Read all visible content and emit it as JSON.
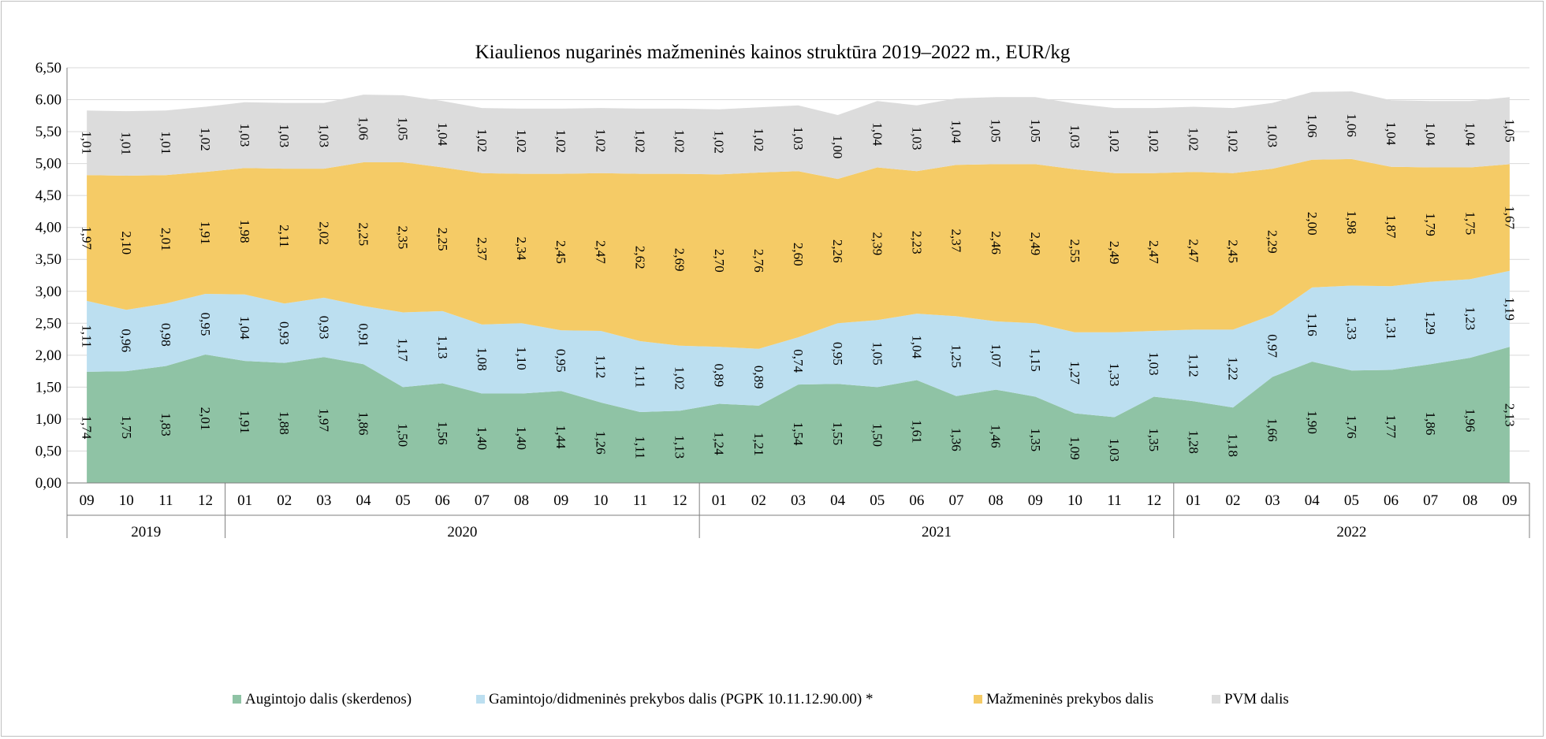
{
  "chart_data": {
    "type": "area",
    "stacked": true,
    "title": "Kiaulienos nugarinės mažmeninės kainos struktūra 2019–2022 m., EUR/kg",
    "xlabel": "",
    "ylabel": "",
    "ylim": [
      0,
      6.5
    ],
    "yticks": [
      "0,00",
      "0,50",
      "1,00",
      "1,50",
      "2,00",
      "2,50",
      "3,00",
      "3,50",
      "4,00",
      "4,50",
      "5,00",
      "5,50",
      "6.00",
      "6,50"
    ],
    "grid": true,
    "legend_position": "bottom",
    "categories": [
      "09",
      "10",
      "11",
      "12",
      "01",
      "02",
      "03",
      "04",
      "05",
      "06",
      "07",
      "08",
      "09",
      "10",
      "11",
      "12",
      "01",
      "02",
      "03",
      "04",
      "05",
      "06",
      "07",
      "08",
      "09",
      "10",
      "11",
      "12",
      "01",
      "02",
      "03",
      "04",
      "05",
      "06",
      "07",
      "08",
      "09"
    ],
    "years": [
      {
        "label": "2019",
        "start": 0,
        "end": 3
      },
      {
        "label": "2020",
        "start": 4,
        "end": 15
      },
      {
        "label": "2021",
        "start": 16,
        "end": 27
      },
      {
        "label": "2022",
        "start": 28,
        "end": 36
      }
    ],
    "series": [
      {
        "name": "Augintojo dalis (skerdenos)",
        "color": "#8fc3a5",
        "values": [
          1.74,
          1.75,
          1.83,
          2.01,
          1.91,
          1.88,
          1.97,
          1.86,
          1.5,
          1.56,
          1.4,
          1.4,
          1.44,
          1.26,
          1.11,
          1.13,
          1.24,
          1.21,
          1.54,
          1.55,
          1.5,
          1.61,
          1.36,
          1.46,
          1.35,
          1.09,
          1.03,
          1.35,
          1.28,
          1.18,
          1.66,
          1.9,
          1.76,
          1.77,
          1.86,
          1.96,
          2.13
        ],
        "labels": [
          "1,74",
          "1,75",
          "1,83",
          "2,01",
          "1,91",
          "1,88",
          "1,97",
          "1,86",
          "1,50",
          "1,56",
          "1,40",
          "1,40",
          "1,44",
          "1,26",
          "1,11",
          "1,13",
          "1,24",
          "1,21",
          "1,54",
          "1,55",
          "1,50",
          "1,61",
          "1,36",
          "1,46",
          "1,35",
          "1,09",
          "1,03",
          "1,35",
          "1,28",
          "1,18",
          "1,66",
          "1,90",
          "1,76",
          "1,77",
          "1,86",
          "1,96",
          "2,13"
        ]
      },
      {
        "name": "Gamintojo/didmeninės prekybos dalis (PGPK 10.11.12.90.00) *",
        "color": "#bcdff0",
        "values": [
          1.11,
          0.96,
          0.98,
          0.95,
          1.04,
          0.93,
          0.93,
          0.91,
          1.17,
          1.13,
          1.08,
          1.1,
          0.95,
          1.12,
          1.11,
          1.02,
          0.89,
          0.89,
          0.74,
          0.95,
          1.05,
          1.04,
          1.25,
          1.07,
          1.15,
          1.27,
          1.33,
          1.03,
          1.12,
          1.22,
          0.97,
          1.16,
          1.33,
          1.31,
          1.29,
          1.23,
          1.19
        ],
        "labels": [
          "1,11",
          "0,96",
          "0,98",
          "0,95",
          "1,04",
          "0,93",
          "0,93",
          "0,91",
          "1,17",
          "1,13",
          "1,08",
          "1,10",
          "0,95",
          "1,12",
          "1,11",
          "1,02",
          "0,89",
          "0,89",
          "0,74",
          "0,95",
          "1,05",
          "1,04",
          "1,25",
          "1,07",
          "1,15",
          "1,27",
          "1,33",
          "1,03",
          "1,12",
          "1,22",
          "0,97",
          "1,16",
          "1,33",
          "1,31",
          "1,29",
          "1,23",
          "1,19"
        ]
      },
      {
        "name": "Mažmeninės prekybos dalis",
        "color": "#f5cb66",
        "values": [
          1.97,
          2.1,
          2.01,
          1.91,
          1.98,
          2.11,
          2.02,
          2.25,
          2.35,
          2.25,
          2.37,
          2.34,
          2.45,
          2.47,
          2.62,
          2.69,
          2.7,
          2.76,
          2.6,
          2.26,
          2.39,
          2.23,
          2.37,
          2.46,
          2.49,
          2.55,
          2.49,
          2.47,
          2.47,
          2.45,
          2.29,
          2.0,
          1.98,
          1.87,
          1.79,
          1.75,
          1.67
        ],
        "labels": [
          "1,97",
          "2,10",
          "2,01",
          "1,91",
          "1,98",
          "2,11",
          "2,02",
          "2,25",
          "2,35",
          "2,25",
          "2,37",
          "2,34",
          "2,45",
          "2,47",
          "2,62",
          "2,69",
          "2,70",
          "2,76",
          "2,60",
          "2,26",
          "2,39",
          "2,23",
          "2,37",
          "2,46",
          "2,49",
          "2,55",
          "2,49",
          "2,47",
          "2,47",
          "2,45",
          "2,29",
          "2,00",
          "1,98",
          "1,87",
          "1,79",
          "1,75",
          "1,67"
        ]
      },
      {
        "name": "PVM dalis",
        "color": "#dcdcdc",
        "values": [
          1.01,
          1.01,
          1.01,
          1.02,
          1.03,
          1.03,
          1.03,
          1.06,
          1.05,
          1.04,
          1.02,
          1.02,
          1.02,
          1.02,
          1.02,
          1.02,
          1.02,
          1.02,
          1.03,
          1.0,
          1.04,
          1.03,
          1.04,
          1.05,
          1.05,
          1.03,
          1.02,
          1.02,
          1.02,
          1.02,
          1.03,
          1.06,
          1.06,
          1.04,
          1.04,
          1.04,
          1.05
        ],
        "labels": [
          "1,01",
          "1,01",
          "1,01",
          "1,02",
          "1,03",
          "1,03",
          "1,03",
          "1,06",
          "1,05",
          "1,04",
          "1,02",
          "1,02",
          "1,02",
          "1,02",
          "1,02",
          "1,02",
          "1,02",
          "1,02",
          "1,03",
          "1,00",
          "1,04",
          "1,03",
          "1,04",
          "1,05",
          "1,05",
          "1,03",
          "1,02",
          "1,02",
          "1,02",
          "1,02",
          "1,03",
          "1,06",
          "1,06",
          "1,04",
          "1,04",
          "1,04",
          "1,05"
        ]
      }
    ]
  }
}
